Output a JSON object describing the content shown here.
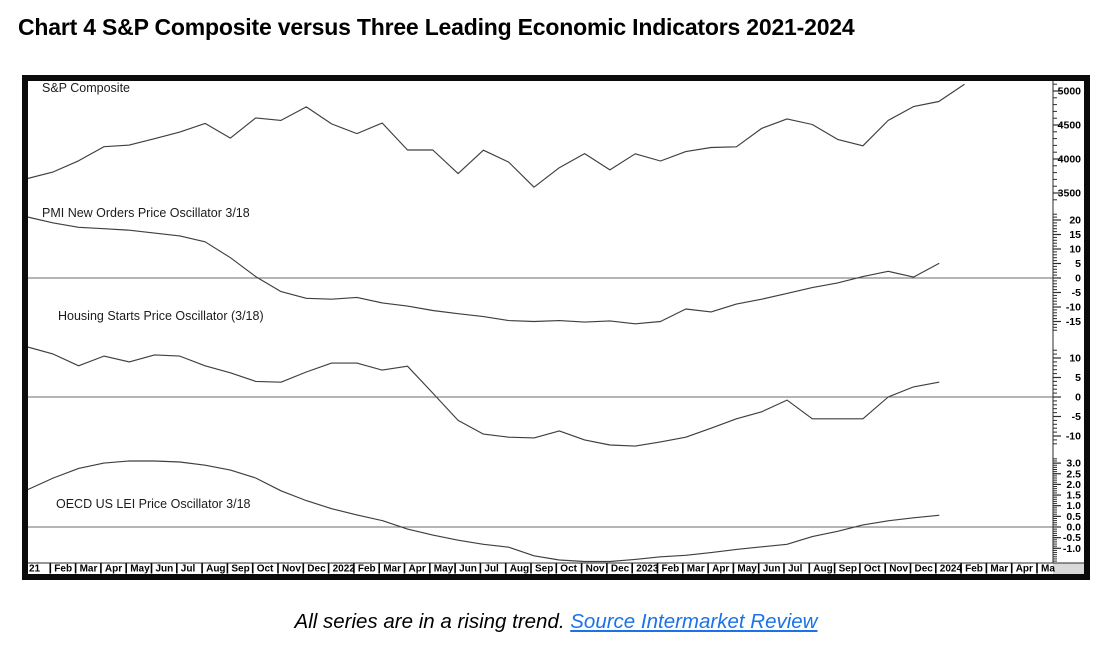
{
  "title": "Chart 4 S&P Composite versus Three Leading Economic Indicators 2021-2024",
  "caption": {
    "text": "All series are in a rising trend. ",
    "link_text": "Source Intermarket Review"
  },
  "colors": {
    "line": "#3f3f3f",
    "zero_line": "#6b6b6b",
    "frame": "#0b0b0b",
    "axis": "#2b2b2b",
    "link": "#1a73e8",
    "strip_gray": "#d9d9d9",
    "background": "#ffffff"
  },
  "chart_data": {
    "type": "line",
    "title": "Chart 4 S&P Composite versus Three Leading Economic Indicators 2021-2024",
    "grid": "off",
    "legend": "panel-labels-top-left",
    "x_labels": [
      "21",
      "Feb",
      "Mar",
      "Apr",
      "May",
      "Jun",
      "Jul",
      "Aug",
      "Sep",
      "Oct",
      "Nov",
      "Dec",
      "2022",
      "Feb",
      "Mar",
      "Apr",
      "May",
      "Jun",
      "Jul",
      "Aug",
      "Sep",
      "Oct",
      "Nov",
      "Dec",
      "2023",
      "Feb",
      "Mar",
      "Apr",
      "May",
      "Jun",
      "Jul",
      "Aug",
      "Sep",
      "Oct",
      "Nov",
      "Dec",
      "2024",
      "Feb",
      "Mar",
      "Apr",
      "Ma"
    ],
    "panels": [
      {
        "label": "S&P Composite",
        "ytick_labels": [
          "5000",
          "4500",
          "4000",
          "3500"
        ],
        "ylim": [
          3400,
          5150
        ],
        "has_zero_line": false,
        "values": [
          3714,
          3811,
          3973,
          4181,
          4204,
          4298,
          4395,
          4523,
          4308,
          4605,
          4567,
          4766,
          4516,
          4374,
          4530,
          4132,
          4132,
          3785,
          4130,
          3955,
          3586,
          3872,
          4080,
          3840,
          4077,
          3970,
          4109,
          4169,
          4180,
          4450,
          4589,
          4508,
          4288,
          4194,
          4568,
          4770,
          4846,
          5096
        ]
      },
      {
        "label": "PMI New Orders Price Oscillator 3/18",
        "ytick_labels": [
          "20",
          "15",
          "10",
          "5",
          "0",
          "-5",
          "-10",
          "-15"
        ],
        "ylim": [
          -18,
          22
        ],
        "has_zero_line": true,
        "values": [
          21,
          19,
          17.5,
          17,
          16.5,
          15.5,
          14.5,
          12.5,
          7,
          0.5,
          -4.7,
          -7,
          -7.3,
          -6.7,
          -8.6,
          -9.7,
          -11.2,
          -12.3,
          -13.3,
          -14.7,
          -15,
          -14.7,
          -15.2,
          -14.8,
          -15.8,
          -15,
          -10.7,
          -11.7,
          -9,
          -7.3,
          -5.3,
          -3.3,
          -1.7,
          0.5,
          2.3,
          0.3,
          5
        ]
      },
      {
        "label": "Housing Starts Price Oscillator (3/18)",
        "ytick_labels": [
          "10",
          "5",
          "0",
          "-5",
          "-10"
        ],
        "ylim": [
          -12,
          12
        ],
        "has_zero_line": true,
        "values": [
          12.8,
          11,
          8,
          10.5,
          9,
          10.8,
          10.5,
          8,
          6.2,
          4,
          3.8,
          6.4,
          8.7,
          8.7,
          6.9,
          7.9,
          1,
          -6,
          -9.5,
          -10.3,
          -10.5,
          -8.7,
          -11,
          -12.3,
          -12.6,
          -11.5,
          -10.3,
          -8,
          -5.6,
          -3.8,
          -0.8,
          -5.6,
          -5.6,
          -5.6,
          0,
          2.6,
          3.8
        ]
      },
      {
        "label": "OECD US LEI Price Oscillator 3/18",
        "ytick_labels": [
          "3.0",
          "2.5",
          "2.0",
          "1.5",
          "1.0",
          "0.5",
          "0.0",
          "-0.5",
          "-1.0"
        ],
        "ylim": [
          -1.6,
          3.2
        ],
        "has_zero_line": true,
        "values": [
          1.76,
          2.3,
          2.75,
          3.0,
          3.1,
          3.1,
          3.05,
          2.9,
          2.67,
          2.3,
          1.7,
          1.24,
          0.86,
          0.57,
          0.3,
          -0.1,
          -0.38,
          -0.62,
          -0.81,
          -0.95,
          -1.35,
          -1.55,
          -1.62,
          -1.62,
          -1.52,
          -1.4,
          -1.33,
          -1.2,
          -1.05,
          -0.93,
          -0.81,
          -0.45,
          -0.2,
          0.1,
          0.29,
          0.43,
          0.55
        ]
      }
    ]
  }
}
